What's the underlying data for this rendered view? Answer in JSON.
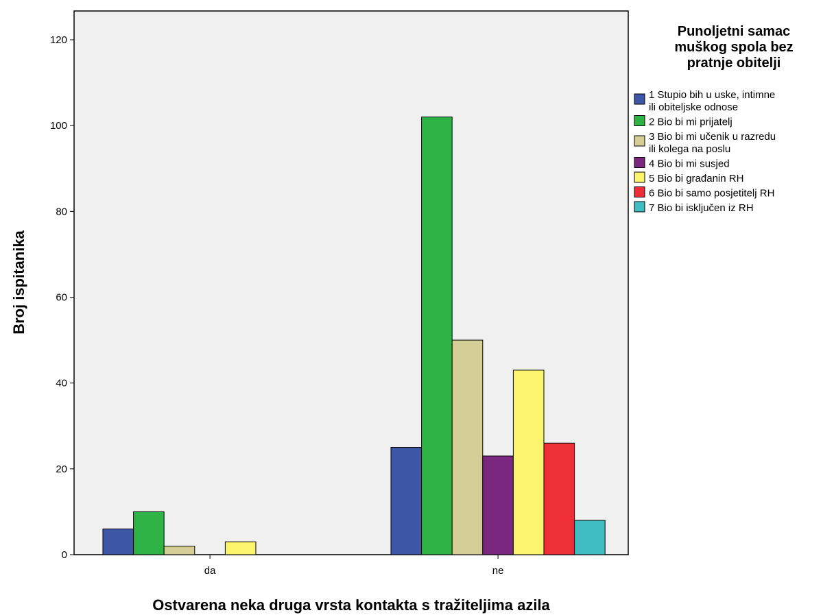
{
  "chart_data": {
    "type": "bar",
    "title": "",
    "xlabel": "Ostvarena neka druga vrsta kontakta s tražiteljima azila",
    "ylabel": "Broj ispitanika",
    "categories": [
      "da",
      "ne"
    ],
    "ylim": [
      0,
      120
    ],
    "yticks": [
      0,
      20,
      40,
      60,
      80,
      100,
      120
    ],
    "grid": false,
    "legend_position": "right",
    "legend_title": [
      "Punoljetni samac",
      "muškog spola bez",
      "pratnje obitelji"
    ],
    "background_color": "#f0f0f0",
    "series": [
      {
        "name": [
          "1 Stupio bih u uske, intimne",
          "ili obiteljske odnose"
        ],
        "color": "#3d56a6",
        "values": [
          6,
          25
        ]
      },
      {
        "name": [
          "2 Bio bi mi prijatelj"
        ],
        "color": "#2fb347",
        "values": [
          10,
          102
        ]
      },
      {
        "name": [
          "3 Bio bi mi učenik u razredu",
          "ili kolega na poslu"
        ],
        "color": "#d4cd96",
        "values": [
          2,
          50
        ]
      },
      {
        "name": [
          "4 Bio bi mi susjed"
        ],
        "color": "#7a2780",
        "values": [
          0,
          23
        ]
      },
      {
        "name": [
          "5 Bio bi građanin RH"
        ],
        "color": "#fbf56e",
        "values": [
          3,
          43
        ]
      },
      {
        "name": [
          "6 Bio bi samo posjetitelj RH"
        ],
        "color": "#ee2f37",
        "values": [
          0,
          26
        ]
      },
      {
        "name": [
          "7 Bio bi isključen iz RH"
        ],
        "color": "#3fbdc2",
        "values": [
          0,
          8
        ]
      }
    ]
  }
}
